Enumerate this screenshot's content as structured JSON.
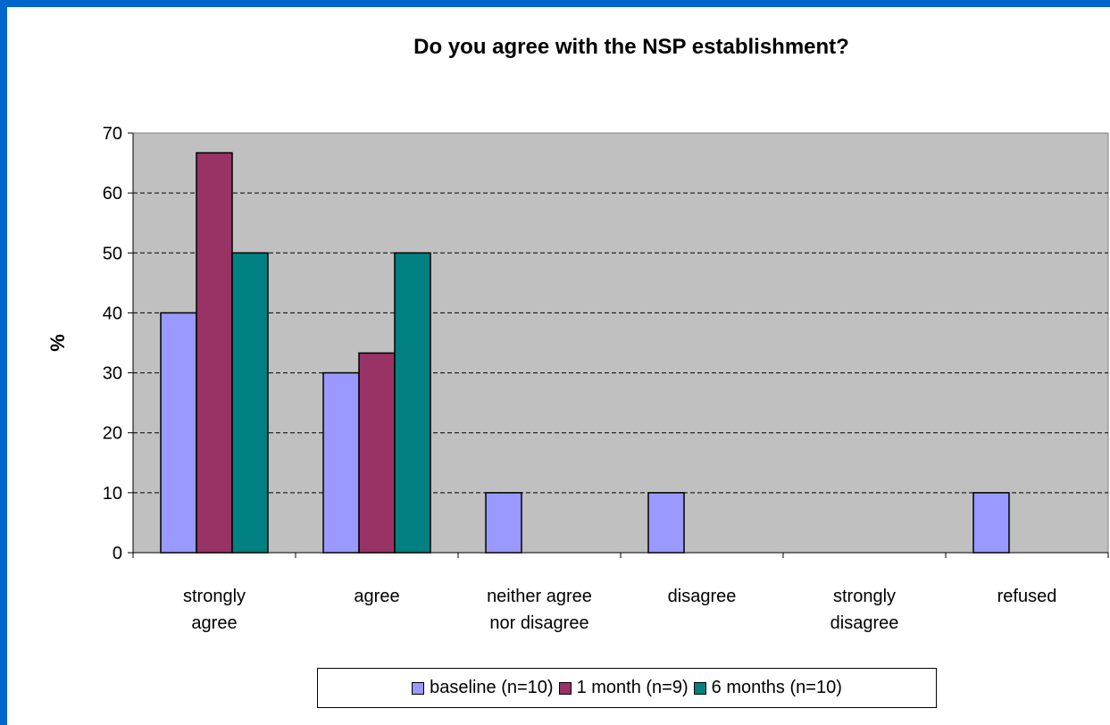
{
  "chart_data": {
    "type": "bar",
    "title": "Do you agree with the NSP establishment?",
    "xlabel": "",
    "ylabel": "%",
    "ylim": [
      0,
      70
    ],
    "yticks": [
      0,
      10,
      20,
      30,
      40,
      50,
      60,
      70
    ],
    "grid": true,
    "legend_position": "bottom",
    "categories": [
      [
        "strongly",
        "agree"
      ],
      [
        "agree"
      ],
      [
        "neither agree",
        "nor disagree"
      ],
      [
        "disagree"
      ],
      [
        "strongly",
        "disagree"
      ],
      [
        "refused"
      ]
    ],
    "series": [
      {
        "name": "baseline (n=10)",
        "color": "#9999ff",
        "values": [
          40,
          30,
          10,
          10,
          0,
          10
        ]
      },
      {
        "name": "1 month (n=9)",
        "color": "#993366",
        "values": [
          66.7,
          33.3,
          0,
          0,
          0,
          0
        ]
      },
      {
        "name": "6 months (n=10)",
        "color": "#008080",
        "values": [
          50,
          50,
          0,
          0,
          0,
          0
        ]
      }
    ],
    "plot_background": "#c0c0c0"
  }
}
